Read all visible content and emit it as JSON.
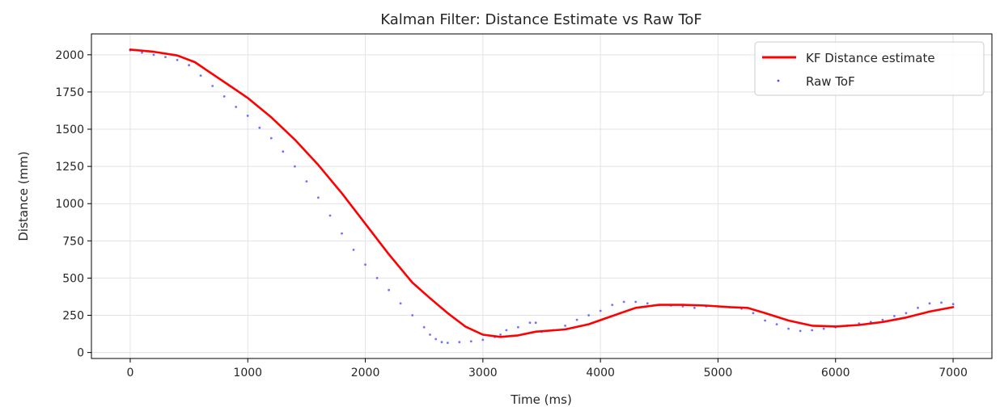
{
  "chart_data": {
    "type": "line",
    "title": "Kalman Filter: Distance Estimate vs Raw ToF",
    "xlabel": "Time (ms)",
    "ylabel": "Distance (mm)",
    "xlim": [
      -330,
      7330
    ],
    "ylim": [
      -40,
      2140
    ],
    "xticks": [
      0,
      1000,
      2000,
      3000,
      4000,
      5000,
      6000,
      7000
    ],
    "yticks": [
      0,
      250,
      500,
      750,
      1000,
      1250,
      1500,
      1750,
      2000
    ],
    "grid": true,
    "legend_position": "top-right",
    "colors": {
      "kf": "#ff0000",
      "raw": "#4d4dff"
    },
    "series": [
      {
        "name": "KF Distance estimate",
        "style": "line",
        "x": [
          0,
          200,
          400,
          550,
          700,
          850,
          1000,
          1200,
          1400,
          1600,
          1800,
          2000,
          2200,
          2400,
          2550,
          2700,
          2850,
          3000,
          3150,
          3300,
          3450,
          3700,
          3900,
          4100,
          4300,
          4500,
          4700,
          4900,
          5100,
          5250,
          5400,
          5600,
          5800,
          6000,
          6200,
          6400,
          6600,
          6800,
          7000
        ],
        "y": [
          2035,
          2020,
          1995,
          1950,
          1870,
          1790,
          1710,
          1580,
          1430,
          1260,
          1070,
          865,
          660,
          470,
          365,
          265,
          175,
          120,
          105,
          115,
          140,
          155,
          190,
          245,
          300,
          320,
          320,
          315,
          305,
          300,
          265,
          215,
          180,
          175,
          185,
          205,
          235,
          275,
          305
        ]
      },
      {
        "name": "Raw ToF",
        "style": "scatter",
        "x": [
          0,
          100,
          200,
          300,
          400,
          500,
          600,
          700,
          800,
          900,
          1000,
          1100,
          1200,
          1300,
          1400,
          1500,
          1600,
          1700,
          1800,
          1900,
          2000,
          2100,
          2200,
          2300,
          2400,
          2500,
          2550,
          2600,
          2650,
          2700,
          2800,
          2900,
          3000,
          3100,
          3150,
          3200,
          3300,
          3400,
          3450,
          3500,
          3600,
          3700,
          3800,
          3900,
          4000,
          4100,
          4200,
          4300,
          4400,
          4500,
          4600,
          4700,
          4800,
          4900,
          5000,
          5100,
          5200,
          5300,
          5400,
          5500,
          5600,
          5700,
          5800,
          5900,
          6000,
          6100,
          6200,
          6300,
          6400,
          6500,
          6600,
          6700,
          6800,
          6900,
          7000
        ],
        "y": [
          2030,
          2015,
          2000,
          1985,
          1965,
          1930,
          1860,
          1790,
          1720,
          1650,
          1590,
          1510,
          1440,
          1350,
          1250,
          1150,
          1040,
          920,
          800,
          690,
          590,
          500,
          420,
          330,
          250,
          170,
          120,
          90,
          70,
          65,
          70,
          75,
          85,
          105,
          120,
          150,
          170,
          200,
          200,
          140,
          150,
          180,
          220,
          250,
          280,
          320,
          340,
          340,
          330,
          320,
          315,
          310,
          300,
          310,
          310,
          305,
          295,
          265,
          215,
          190,
          160,
          145,
          150,
          160,
          170,
          180,
          195,
          205,
          220,
          245,
          265,
          300,
          330,
          335,
          325
        ]
      }
    ]
  }
}
